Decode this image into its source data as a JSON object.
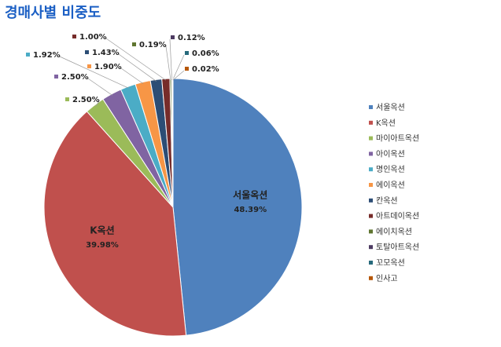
{
  "chart_data": {
    "type": "pie",
    "title": "경매사별 비중도",
    "categories": [
      "서울옥션",
      "K옥션",
      "마이아트옥션",
      "아이옥션",
      "명인옥션",
      "에이옥션",
      "칸옥션",
      "아트데이옥션",
      "에이치옥션",
      "토탈아트옥션",
      "꼬모옥션",
      "인사고"
    ],
    "values": [
      48.39,
      39.98,
      2.5,
      2.5,
      1.92,
      1.9,
      1.43,
      1.0,
      0.19,
      0.12,
      0.06,
      0.02
    ],
    "value_labels": [
      "48.39%",
      "39.98%",
      "2.50%",
      "2.50%",
      "1.92%",
      "1.90%",
      "1.43%",
      "1.00%",
      "0.19%",
      "0.12%",
      "0.06%",
      "0.02%"
    ],
    "colors": [
      "#4f81bd",
      "#c0504d",
      "#9bbb59",
      "#8064a2",
      "#4bacc6",
      "#f79646",
      "#2c4d75",
      "#772c2a",
      "#5f7530",
      "#4d3b62",
      "#276a7c",
      "#b65708"
    ],
    "legend": "right"
  }
}
